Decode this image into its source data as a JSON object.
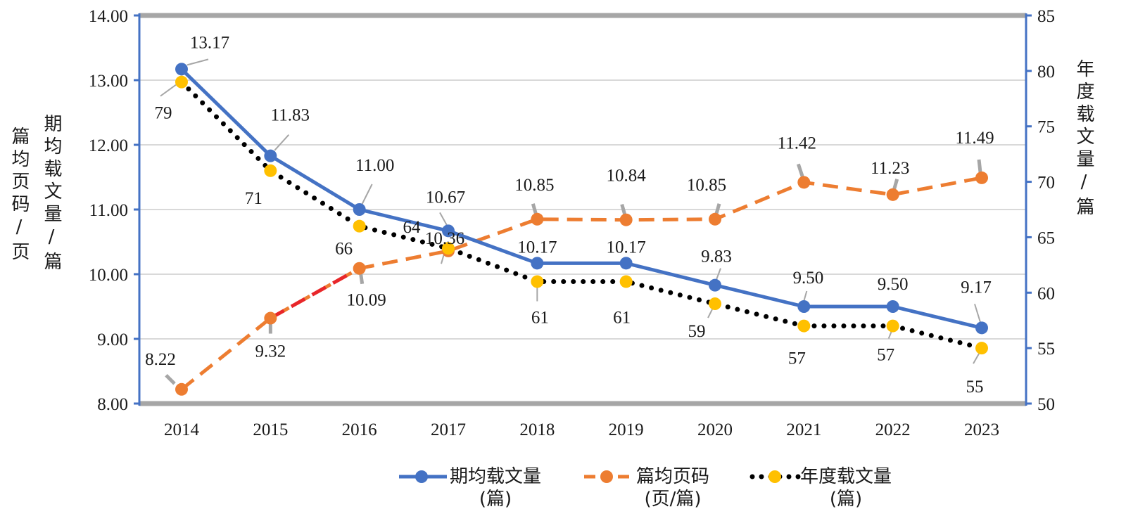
{
  "chart_data": {
    "type": "line",
    "categories": [
      "2014",
      "2015",
      "2016",
      "2017",
      "2018",
      "2019",
      "2020",
      "2021",
      "2022",
      "2023"
    ],
    "y_left": {
      "title": "篇均页码/页  期均载文量/篇",
      "title_lines": [
        "篇均页码/页",
        "期均载文量/篇"
      ],
      "range": [
        8.0,
        14.0
      ],
      "ticks": [
        "8.00",
        "9.00",
        "10.00",
        "11.00",
        "12.00",
        "13.00",
        "14.00"
      ]
    },
    "y_right": {
      "title": "年度载文量/篇",
      "range": [
        50,
        85
      ],
      "ticks": [
        "50",
        "55",
        "60",
        "65",
        "70",
        "75",
        "80",
        "85"
      ]
    },
    "series": [
      {
        "name": "期均载文量(篇)",
        "legend_lines": [
          "期均载文量",
          "(篇)"
        ],
        "axis": "left",
        "style": "solid",
        "color": "#4472c4",
        "values": [
          13.17,
          11.83,
          11.0,
          10.67,
          10.17,
          10.17,
          9.83,
          9.5,
          9.5,
          9.17
        ],
        "labels": [
          "13.17",
          "11.83",
          "11.00",
          "10.67",
          "10.17",
          "10.17",
          "9.83",
          "9.50",
          "9.50",
          "9.17"
        ]
      },
      {
        "name": "篇均页码(页/篇)",
        "legend_lines": [
          "篇均页码",
          "(页/篇)"
        ],
        "axis": "left",
        "style": "dashed",
        "color": "#ed7d31",
        "values": [
          8.22,
          9.32,
          10.09,
          10.36,
          10.85,
          10.84,
          10.85,
          11.42,
          11.23,
          11.49
        ],
        "labels": [
          "8.22",
          "9.32",
          "10.09",
          "10.36",
          "10.85",
          "10.84",
          "10.85",
          "11.42",
          "11.23",
          "11.49"
        ]
      },
      {
        "name": "年度载文量(篇)",
        "legend_lines": [
          "年度载文量",
          "(篇)"
        ],
        "axis": "right",
        "style": "dotted",
        "color": "#ffc000",
        "values": [
          79,
          71,
          66,
          64,
          61,
          61,
          59,
          57,
          57,
          55
        ],
        "labels": [
          "79",
          "71",
          "66",
          "64",
          "61",
          "61",
          "59",
          "57",
          "57",
          "55"
        ]
      }
    ],
    "highlight_segment_color": "#e8262a",
    "grid": true,
    "legend_position": "bottom"
  }
}
